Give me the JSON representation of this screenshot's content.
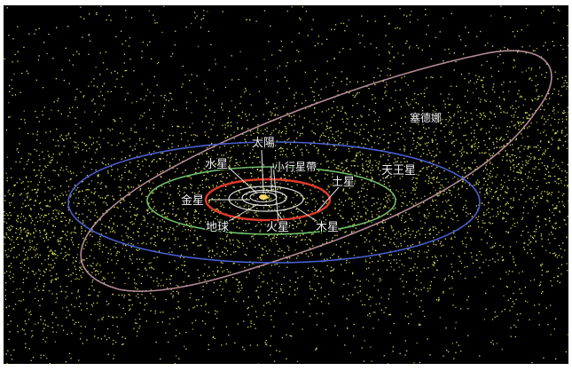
{
  "colors": {
    "background": "#000000",
    "frame": "#ffffff",
    "dots": "#d9de52",
    "orbit_inner": "#e0e0e0",
    "orbit_red": "#e23a2a",
    "orbit_green": "#6fbf6a",
    "orbit_blue": "#4a5fd0",
    "orbit_sedna": "#c79aa8",
    "sun": "#f7d56a"
  },
  "labels": {
    "sun": "太陽",
    "mercury": "水星",
    "asteroid_belt": "小行星帶",
    "uranus": "天王星",
    "saturn": "土星",
    "venus": "金星",
    "earth": "地球",
    "mars": "火星",
    "jupiter": "木星",
    "sedna": "塞德娜"
  }
}
